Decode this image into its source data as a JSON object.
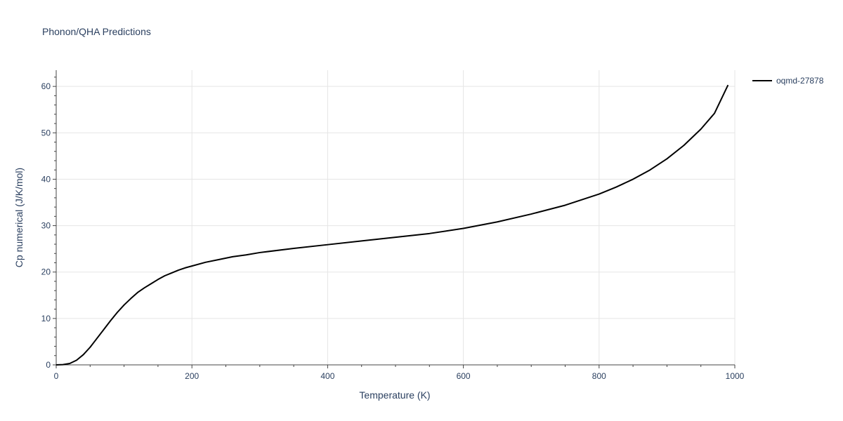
{
  "chart_data": {
    "type": "line",
    "title": "Phonon/QHA Predictions",
    "xlabel": "Temperature (K)",
    "ylabel": "Cp numerical (J/K/mol)",
    "xlim": [
      0,
      1000
    ],
    "ylim": [
      0,
      63.5
    ],
    "x_ticks": [
      0,
      200,
      400,
      600,
      800,
      1000
    ],
    "y_ticks": [
      0,
      10,
      20,
      30,
      40,
      50,
      60
    ],
    "x_tick_labels": [
      "0",
      "200",
      "400",
      "600",
      "800",
      "1000"
    ],
    "y_tick_labels": [
      "0",
      "10",
      "20",
      "30",
      "40",
      "50",
      "60"
    ],
    "grid": true,
    "legend_position": "top-right",
    "series": [
      {
        "name": "oqmd-27878",
        "color": "#000000",
        "x": [
          0,
          10,
          20,
          30,
          40,
          50,
          60,
          70,
          80,
          90,
          100,
          110,
          120,
          130,
          140,
          150,
          160,
          170,
          180,
          190,
          200,
          220,
          240,
          260,
          280,
          300,
          350,
          400,
          450,
          500,
          550,
          600,
          650,
          700,
          750,
          800,
          825,
          850,
          875,
          900,
          925,
          950,
          970,
          990
        ],
        "y": [
          0,
          0.05,
          0.3,
          1.0,
          2.2,
          3.8,
          5.7,
          7.6,
          9.5,
          11.3,
          12.9,
          14.3,
          15.6,
          16.6,
          17.5,
          18.4,
          19.2,
          19.8,
          20.4,
          20.9,
          21.3,
          22.1,
          22.7,
          23.3,
          23.7,
          24.2,
          25.1,
          25.9,
          26.7,
          27.5,
          28.3,
          29.4,
          30.8,
          32.5,
          34.4,
          36.8,
          38.3,
          40.0,
          42.0,
          44.4,
          47.3,
          50.8,
          54.2,
          60.3
        ]
      }
    ]
  }
}
